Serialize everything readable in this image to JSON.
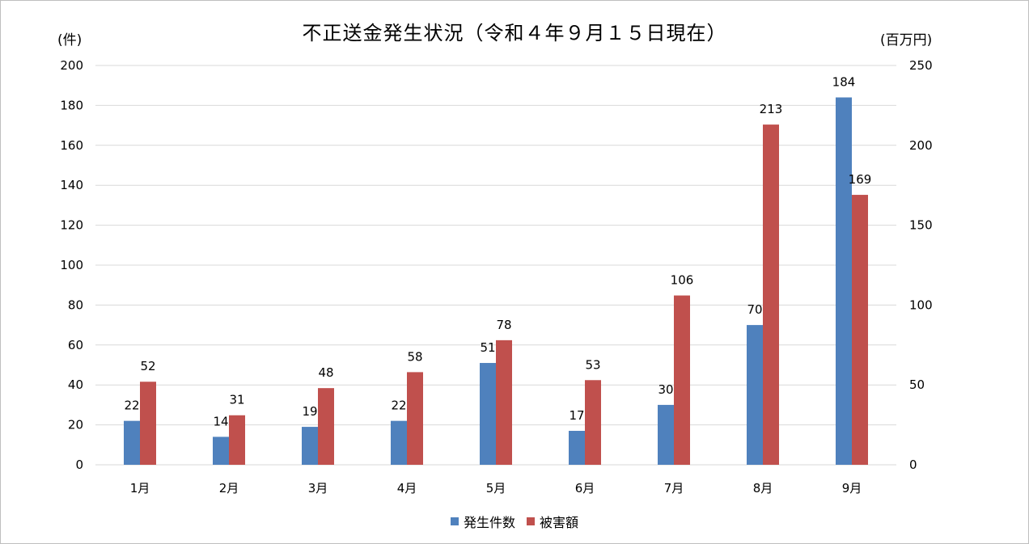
{
  "chart_data": {
    "type": "bar",
    "title": "不正送金発生状況（令和４年９月１５日現在）",
    "categories": [
      "1月",
      "2月",
      "3月",
      "4月",
      "5月",
      "6月",
      "7月",
      "8月",
      "9月"
    ],
    "series": [
      {
        "name": "発生件数",
        "axis": "left",
        "color": "#4f81bd",
        "values": [
          22,
          14,
          19,
          22,
          51,
          17,
          30,
          70,
          184
        ]
      },
      {
        "name": "被害額",
        "axis": "right",
        "color": "#c0504d",
        "values": [
          52,
          31,
          48,
          58,
          78,
          53,
          106,
          213,
          169
        ]
      }
    ],
    "ylabel_left": "(件)",
    "ylabel_right": "(百万円)",
    "ylim_left": [
      0,
      200
    ],
    "ylim_right": [
      0,
      250
    ],
    "yticks_left": [
      "0",
      "20",
      "40",
      "60",
      "80",
      "100",
      "120",
      "140",
      "160",
      "180",
      "200"
    ],
    "yticks_right": [
      "0",
      "50",
      "100",
      "150",
      "200",
      "250"
    ],
    "grid": true,
    "legend_position": "bottom"
  }
}
